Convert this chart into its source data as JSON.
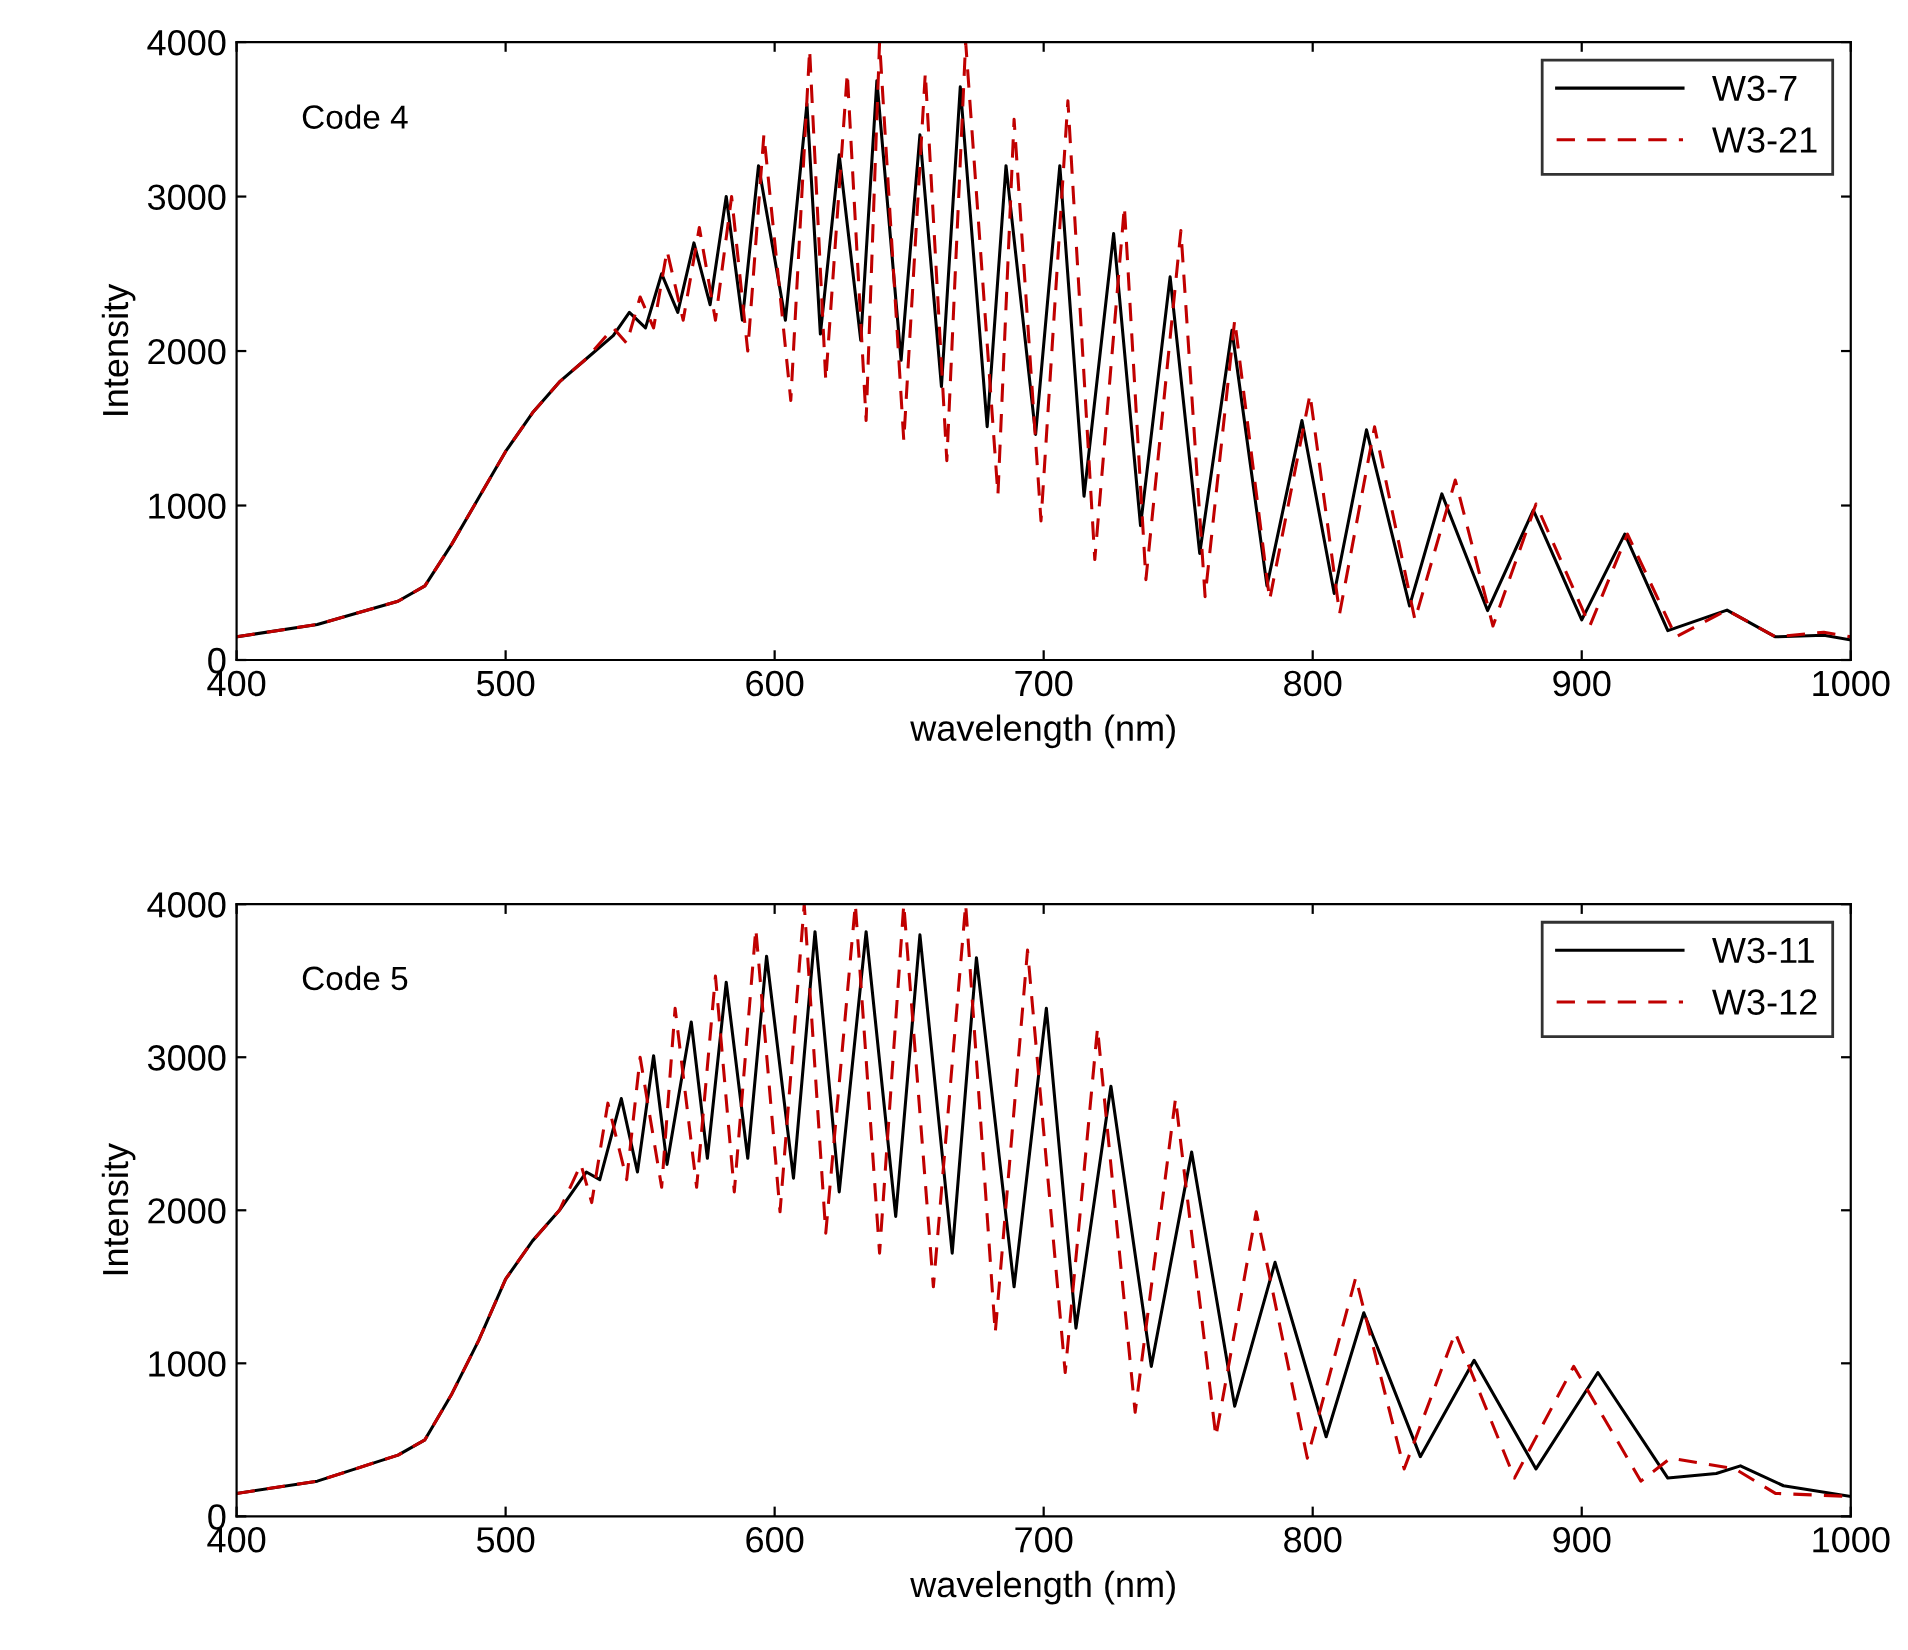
{
  "chart_data": [
    {
      "type": "line",
      "xlabel": "wavelength (nm)",
      "ylabel": "Intensity",
      "annotations": [
        "Code 4"
      ],
      "xlim": [
        400,
        1000
      ],
      "ylim": [
        0,
        4000
      ],
      "xticks": [
        400,
        500,
        600,
        700,
        800,
        900,
        1000
      ],
      "yticks": [
        0,
        1000,
        2000,
        3000,
        4000
      ],
      "grid": false,
      "legend": "top right",
      "series": [
        {
          "name": "W3-7",
          "color": "#000000",
          "line_style": "solid",
          "x": [
            400,
            430,
            460,
            470,
            480,
            490,
            500,
            510,
            520,
            530,
            540,
            546,
            552,
            558,
            564,
            570,
            576,
            582,
            588,
            594,
            604,
            612,
            617,
            624,
            632,
            638,
            647,
            654,
            662,
            669,
            679,
            686,
            697,
            706,
            715,
            726,
            736,
            747,
            758,
            770,
            783,
            796,
            808,
            820,
            836,
            848,
            865,
            882,
            900,
            916,
            932,
            954,
            972,
            990,
            1000
          ],
          "values": [
            150,
            230,
            380,
            480,
            750,
            1050,
            1350,
            1600,
            1800,
            1950,
            2100,
            2250,
            2150,
            2500,
            2250,
            2700,
            2300,
            3000,
            2200,
            3200,
            2200,
            3600,
            2110,
            3270,
            2070,
            3750,
            1940,
            3400,
            1770,
            3710,
            1510,
            3200,
            1460,
            3200,
            1060,
            2760,
            870,
            2480,
            690,
            2135,
            480,
            1550,
            430,
            1490,
            350,
            1075,
            320,
            970,
            260,
            815,
            190,
            323,
            150,
            160,
            130
          ]
        },
        {
          "name": "W3-21",
          "color": "#c00000",
          "line_style": "dashed",
          "x": [
            400,
            430,
            460,
            470,
            480,
            490,
            500,
            510,
            520,
            530,
            540,
            545,
            550,
            555,
            560,
            566,
            572,
            578,
            584,
            590,
            596,
            606,
            613,
            619,
            627,
            634,
            639,
            648,
            656,
            664,
            671,
            683,
            689,
            699,
            709,
            719,
            730,
            738,
            751,
            760,
            771,
            784,
            799,
            810,
            823,
            838,
            853,
            867,
            883,
            903,
            917,
            935,
            954,
            972,
            990,
            1000
          ],
          "values": [
            150,
            230,
            380,
            480,
            750,
            1050,
            1350,
            1600,
            1800,
            1950,
            2150,
            2050,
            2350,
            2150,
            2650,
            2200,
            2800,
            2200,
            3000,
            2000,
            3400,
            1680,
            3950,
            1810,
            3800,
            1550,
            4000,
            1420,
            3800,
            1290,
            4000,
            1070,
            3500,
            900,
            3620,
            650,
            2935,
            520,
            2780,
            410,
            2200,
            390,
            1720,
            300,
            1510,
            260,
            1165,
            220,
            1010,
            220,
            815,
            150,
            323,
            150,
            180,
            150
          ]
        }
      ]
    },
    {
      "type": "line",
      "xlabel": "wavelength (nm)",
      "ylabel": "Intensity",
      "annotations": [
        "Code 5"
      ],
      "xlim": [
        400,
        1000
      ],
      "ylim": [
        0,
        4000
      ],
      "xticks": [
        400,
        500,
        600,
        700,
        800,
        900,
        1000
      ],
      "yticks": [
        0,
        1000,
        2000,
        3000,
        4000
      ],
      "grid": false,
      "legend": "top right",
      "series": [
        {
          "name": "W3-11",
          "color": "#000000",
          "line_style": "solid",
          "x": [
            400,
            430,
            460,
            470,
            480,
            490,
            500,
            510,
            520,
            530,
            535,
            543,
            549,
            555,
            560,
            569,
            575,
            582,
            590,
            597,
            607,
            615,
            624,
            634,
            645,
            654,
            666,
            675,
            689,
            701,
            712,
            725,
            740,
            755,
            771,
            786,
            805,
            819,
            840,
            860,
            883,
            906,
            932,
            950,
            959,
            975,
            1000
          ],
          "values": [
            150,
            230,
            400,
            500,
            800,
            1150,
            1550,
            1800,
            2000,
            2250,
            2200,
            2730,
            2250,
            3010,
            2300,
            3230,
            2340,
            3490,
            2340,
            3660,
            2210,
            3820,
            2120,
            3820,
            1960,
            3800,
            1720,
            3650,
            1500,
            3320,
            1230,
            2810,
            980,
            2380,
            720,
            1660,
            520,
            1330,
            390,
            1020,
            310,
            940,
            250,
            280,
            330,
            200,
            130
          ]
        },
        {
          "name": "W3-12",
          "color": "#c00000",
          "line_style": "dashed",
          "x": [
            400,
            430,
            460,
            470,
            480,
            490,
            500,
            510,
            520,
            528,
            532,
            538,
            545,
            550,
            558,
            563,
            571,
            578,
            585,
            593,
            602,
            611,
            619,
            630,
            639,
            648,
            659,
            671,
            682,
            694,
            708,
            720,
            734,
            749,
            764,
            779,
            798,
            816,
            834,
            853,
            875,
            897,
            922,
            933,
            957,
            972,
            1000
          ],
          "values": [
            150,
            230,
            400,
            500,
            800,
            1150,
            1550,
            1800,
            2000,
            2300,
            2050,
            2700,
            2200,
            3000,
            2150,
            3320,
            2150,
            3530,
            2120,
            3840,
            1990,
            4000,
            1850,
            4000,
            1720,
            4000,
            1500,
            4000,
            1200,
            3700,
            940,
            3190,
            680,
            2730,
            520,
            1990,
            380,
            1560,
            310,
            1200,
            250,
            980,
            230,
            380,
            310,
            150,
            130
          ]
        }
      ]
    }
  ]
}
